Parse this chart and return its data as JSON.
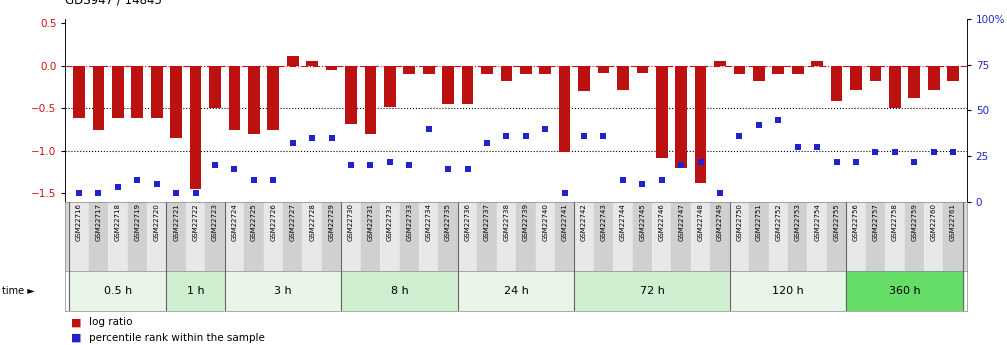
{
  "title": "GDS947 / 14845",
  "gsm_labels": [
    "GSM22716",
    "GSM22717",
    "GSM22718",
    "GSM22719",
    "GSM22720",
    "GSM22721",
    "GSM22722",
    "GSM22723",
    "GSM22724",
    "GSM22725",
    "GSM22726",
    "GSM22727",
    "GSM22728",
    "GSM22729",
    "GSM22730",
    "GSM22731",
    "GSM22732",
    "GSM22733",
    "GSM22734",
    "GSM22735",
    "GSM22736",
    "GSM22737",
    "GSM22738",
    "GSM22739",
    "GSM22740",
    "GSM22741",
    "GSM22742",
    "GSM22743",
    "GSM22744",
    "GSM22745",
    "GSM22746",
    "GSM22747",
    "GSM22748",
    "GSM22749",
    "GSM22750",
    "GSM22751",
    "GSM22752",
    "GSM22753",
    "GSM22754",
    "GSM22755",
    "GSM22756",
    "GSM22757",
    "GSM22758",
    "GSM22759",
    "GSM22760",
    "GSM22761"
  ],
  "log_ratio": [
    -0.62,
    -0.75,
    -0.62,
    -0.62,
    -0.62,
    -0.85,
    -1.45,
    -0.5,
    -0.75,
    -0.8,
    -0.75,
    0.12,
    0.05,
    -0.05,
    -0.68,
    -0.8,
    -0.48,
    -0.1,
    -0.1,
    -0.45,
    -0.45,
    -0.1,
    -0.18,
    -0.1,
    -0.1,
    -1.02,
    -0.3,
    -0.08,
    -0.28,
    -0.08,
    -1.08,
    -1.2,
    -1.38,
    0.05,
    -0.1,
    -0.18,
    -0.1,
    -0.1,
    0.05,
    -0.42,
    -0.28,
    -0.18,
    -0.5,
    -0.38,
    -0.28,
    -0.18
  ],
  "percentile_rank": [
    5,
    5,
    8,
    12,
    10,
    5,
    5,
    20,
    18,
    12,
    12,
    32,
    35,
    35,
    20,
    20,
    22,
    20,
    40,
    18,
    18,
    32,
    36,
    36,
    40,
    5,
    36,
    36,
    12,
    10,
    12,
    20,
    22,
    5,
    36,
    42,
    45,
    30,
    30,
    22,
    22,
    27,
    27,
    22,
    27,
    27
  ],
  "time_groups": [
    {
      "label": "0.5 h",
      "start": 0,
      "end": 5,
      "color": "#e8f5e8"
    },
    {
      "label": "1 h",
      "start": 5,
      "end": 8,
      "color": "#d0eed0"
    },
    {
      "label": "3 h",
      "start": 8,
      "end": 14,
      "color": "#e8f5e8"
    },
    {
      "label": "8 h",
      "start": 14,
      "end": 20,
      "color": "#d0eed0"
    },
    {
      "label": "24 h",
      "start": 20,
      "end": 26,
      "color": "#e8f5e8"
    },
    {
      "label": "72 h",
      "start": 26,
      "end": 34,
      "color": "#d0eed0"
    },
    {
      "label": "120 h",
      "start": 34,
      "end": 40,
      "color": "#e8f5e8"
    },
    {
      "label": "360 h",
      "start": 40,
      "end": 46,
      "color": "#66dd66"
    }
  ],
  "bar_color": "#bb1111",
  "dot_color": "#2222cc",
  "ylim_left": [
    -1.6,
    0.55
  ],
  "ylim_right": [
    0,
    100
  ],
  "yticks_left": [
    -1.5,
    -1.0,
    -0.5,
    0.0,
    0.5
  ],
  "yticks_right": [
    0,
    25,
    50,
    75,
    100
  ],
  "dotted_hlines": [
    -1.0,
    -0.5
  ],
  "plot_bg": "#ffffff",
  "gsm_bg_color": "#d8d8d8",
  "time_label_color": "#000000"
}
